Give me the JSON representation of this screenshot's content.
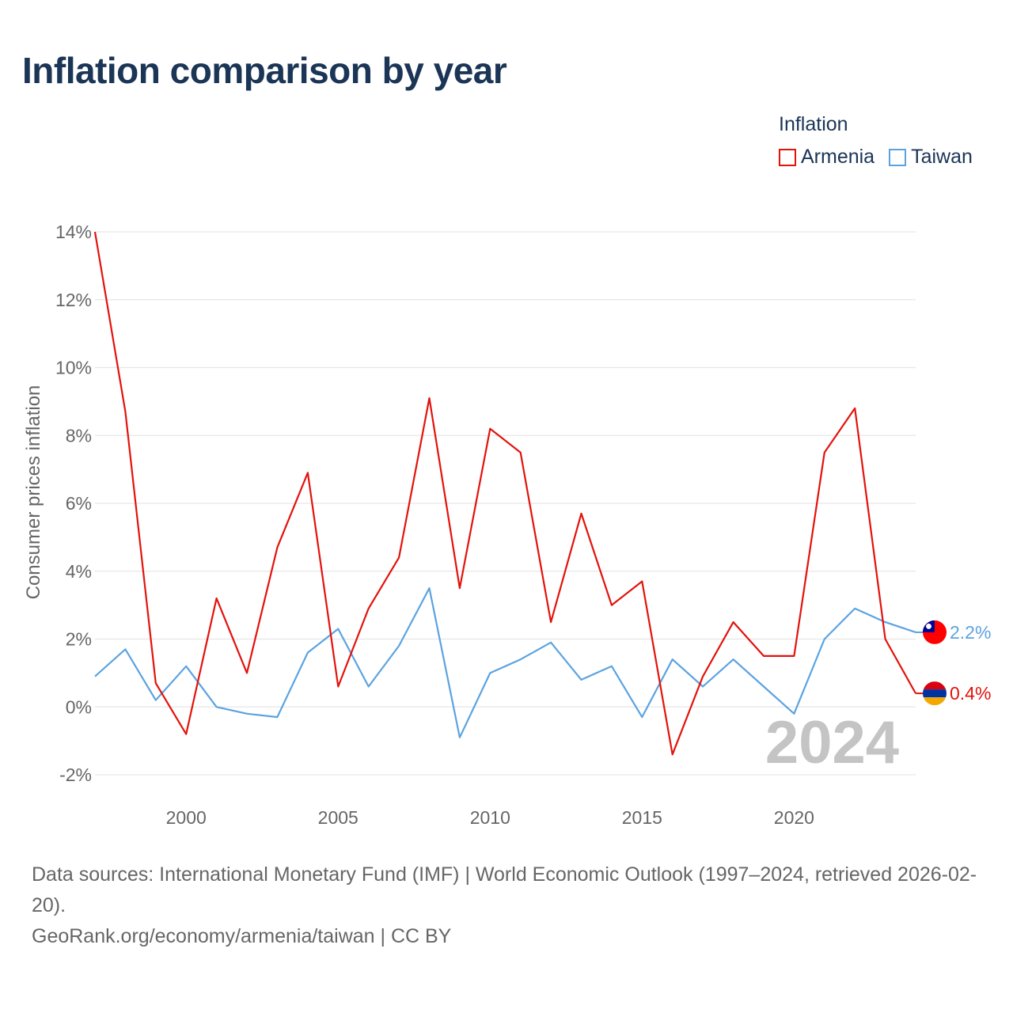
{
  "title": "Inflation comparison by year",
  "legend": {
    "title": "Inflation",
    "items": [
      {
        "label": "Armenia",
        "color": "#e3120b"
      },
      {
        "label": "Taiwan",
        "color": "#5ba3e0"
      }
    ]
  },
  "chart_data": {
    "type": "line",
    "title": "Inflation comparison by year",
    "xlabel": "",
    "ylabel": "Consumer prices inflation",
    "ylim": [
      -2.5,
      14
    ],
    "xlim": [
      1997,
      2024
    ],
    "y_ticks": [
      -2,
      0,
      2,
      4,
      6,
      8,
      10,
      12,
      14
    ],
    "y_tick_labels": [
      "-2%",
      "0%",
      "2%",
      "4%",
      "6%",
      "8%",
      "10%",
      "12%",
      "14%"
    ],
    "x_ticks": [
      2000,
      2005,
      2010,
      2015,
      2020
    ],
    "x_tick_labels": [
      "2000",
      "2005",
      "2010",
      "2015",
      "2020"
    ],
    "grid": true,
    "legend_position": "top-right",
    "year_watermark": "2024",
    "x": [
      1997,
      1998,
      1999,
      2000,
      2001,
      2002,
      2003,
      2004,
      2005,
      2006,
      2007,
      2008,
      2009,
      2010,
      2011,
      2012,
      2013,
      2014,
      2015,
      2016,
      2017,
      2018,
      2019,
      2020,
      2021,
      2022,
      2023,
      2024
    ],
    "series": [
      {
        "name": "Armenia",
        "color": "#e3120b",
        "end_label": "0.4%",
        "values": [
          14.0,
          8.7,
          0.7,
          -0.8,
          3.2,
          1.0,
          4.7,
          6.9,
          0.6,
          2.9,
          4.4,
          9.1,
          3.5,
          8.2,
          7.5,
          2.5,
          5.7,
          3.0,
          3.7,
          -1.4,
          0.9,
          2.5,
          1.5,
          1.5,
          7.5,
          8.8,
          2.0,
          0.4
        ]
      },
      {
        "name": "Taiwan",
        "color": "#5ba3e0",
        "end_label": "2.2%",
        "values": [
          0.9,
          1.7,
          0.2,
          1.2,
          0.0,
          -0.2,
          -0.3,
          1.6,
          2.3,
          0.6,
          1.8,
          3.5,
          -0.9,
          1.0,
          1.4,
          1.9,
          0.8,
          1.2,
          -0.3,
          1.4,
          0.6,
          1.4,
          0.6,
          -0.2,
          2.0,
          2.9,
          2.5,
          2.2
        ]
      }
    ]
  },
  "footer": {
    "sources_line": "Data sources: International Monetary Fund (IMF) | World Economic Outlook (1997–2024, retrieved 2026-02-20).",
    "credit_line": "GeoRank.org/economy/armenia/taiwan | CC BY"
  }
}
